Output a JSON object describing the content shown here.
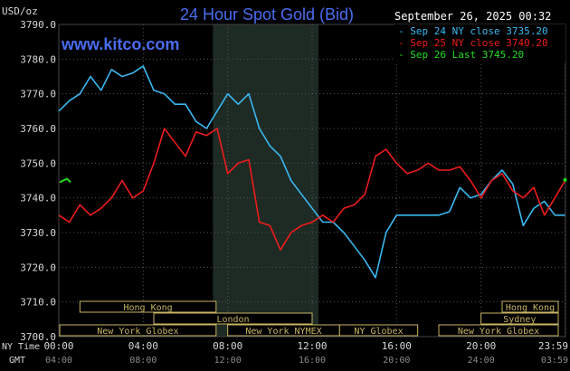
{
  "chart_data": {
    "type": "line",
    "title": "24 Hour Spot Gold (Bid)",
    "ylabel": "USD/oz",
    "datetime": "September 26, 2025 00:32",
    "watermark": "www.kitco.com",
    "ylim": [
      3700,
      3790
    ],
    "yticks": [
      "3790.0",
      "3780.0",
      "3770.0",
      "3760.0",
      "3750.0",
      "3740.0",
      "3730.0",
      "3720.0",
      "3710.0",
      "3700.0"
    ],
    "x_hours": [
      0,
      24
    ],
    "xticks_ny": [
      "00:00",
      "04:00",
      "08:00",
      "12:00",
      "16:00",
      "20:00",
      "23:59"
    ],
    "xticks_gmt": [
      "04:00",
      "08:00",
      "12:00",
      "16:00",
      "20:00",
      "24:00",
      "03:59"
    ],
    "x_row_labels": {
      "ny": "NY Time",
      "gmt": "GMT"
    },
    "grid": true,
    "legend_position": "top-right",
    "shaded_region_hours": [
      7.3,
      12.3
    ],
    "series": [
      {
        "name": "Sep 24 NY close 3735.20",
        "color": "#3ab8f0",
        "x": [
          0,
          0.5,
          1,
          1.5,
          2,
          2.5,
          3,
          3.5,
          4,
          4.5,
          5,
          5.5,
          6,
          6.5,
          7,
          7.5,
          8,
          8.5,
          9,
          9.5,
          10,
          10.5,
          11,
          11.5,
          12,
          12.5,
          13,
          13.5,
          14,
          14.5,
          15,
          15.5,
          16,
          16.5,
          17,
          17.5,
          18,
          18.5,
          19,
          19.5,
          20,
          20.5,
          21,
          21.5,
          22,
          22.5,
          23,
          23.5,
          23.98
        ],
        "y": [
          3765,
          3768,
          3770,
          3775,
          3771,
          3777,
          3775,
          3776,
          3778,
          3771,
          3770,
          3767,
          3767,
          3762,
          3760,
          3765,
          3770,
          3767,
          3770,
          3760,
          3755,
          3752,
          3745,
          3741,
          3737,
          3733,
          3733,
          3730,
          3726,
          3722,
          3717,
          3730,
          3735,
          3735,
          3735,
          3735,
          3735,
          3736,
          3743,
          3740,
          3741,
          3745,
          3748,
          3744,
          3732,
          3737,
          3739,
          3735,
          3735
        ]
      },
      {
        "name": "Sep 25 NY close 3740.20",
        "color": "#ee1c1c",
        "x": [
          0,
          0.5,
          1,
          1.5,
          2,
          2.5,
          3,
          3.5,
          4,
          4.5,
          5,
          5.5,
          6,
          6.5,
          7,
          7.5,
          8,
          8.5,
          9,
          9.5,
          10,
          10.5,
          11,
          11.5,
          12,
          12.5,
          13,
          13.5,
          14,
          14.5,
          15,
          15.5,
          16,
          16.5,
          17,
          17.5,
          18,
          18.5,
          19,
          19.5,
          20,
          20.5,
          21,
          21.5,
          22,
          22.5,
          23,
          23.5,
          23.98
        ],
        "y": [
          3735,
          3733,
          3738,
          3735,
          3737,
          3740,
          3745,
          3740,
          3742,
          3750,
          3760,
          3756,
          3752,
          3759,
          3758,
          3760,
          3747,
          3750,
          3751,
          3733,
          3732,
          3725,
          3730,
          3732,
          3733,
          3735,
          3733,
          3737,
          3738,
          3741,
          3752,
          3754,
          3750,
          3747,
          3748,
          3750,
          3748,
          3748,
          3749,
          3745,
          3740,
          3745,
          3747,
          3742,
          3740,
          3743,
          3735,
          3740,
          3745
        ]
      },
      {
        "name": "Sep 26 Last 3745.20",
        "color": "#22dd22",
        "x": [
          23.98
        ],
        "y": [
          3745.2
        ]
      }
    ],
    "start_marker": {
      "color": "#22dd22",
      "y": 3744.5
    },
    "sessions": [
      {
        "label": "Hong Kong",
        "start": 1.0,
        "end": 7.45,
        "row": 0
      },
      {
        "label": "Hong Kong",
        "start": 21.0,
        "end": 25.0,
        "row": 0
      },
      {
        "label": "London",
        "start": 4.5,
        "end": 12.0,
        "row": 1
      },
      {
        "label": "Sydney",
        "start": 20.0,
        "end": 25.0,
        "row": 1
      },
      {
        "label": "New York Globex",
        "start": 0,
        "end": 7.45,
        "row": 2
      },
      {
        "label": "New York NYMEX",
        "start": 8.0,
        "end": 13.3,
        "row": 2
      },
      {
        "label": "NY Globex",
        "start": 13.3,
        "end": 17.0,
        "row": 2
      },
      {
        "label": "New York Globex",
        "start": 18.0,
        "end": 25.0,
        "row": 2
      }
    ]
  }
}
